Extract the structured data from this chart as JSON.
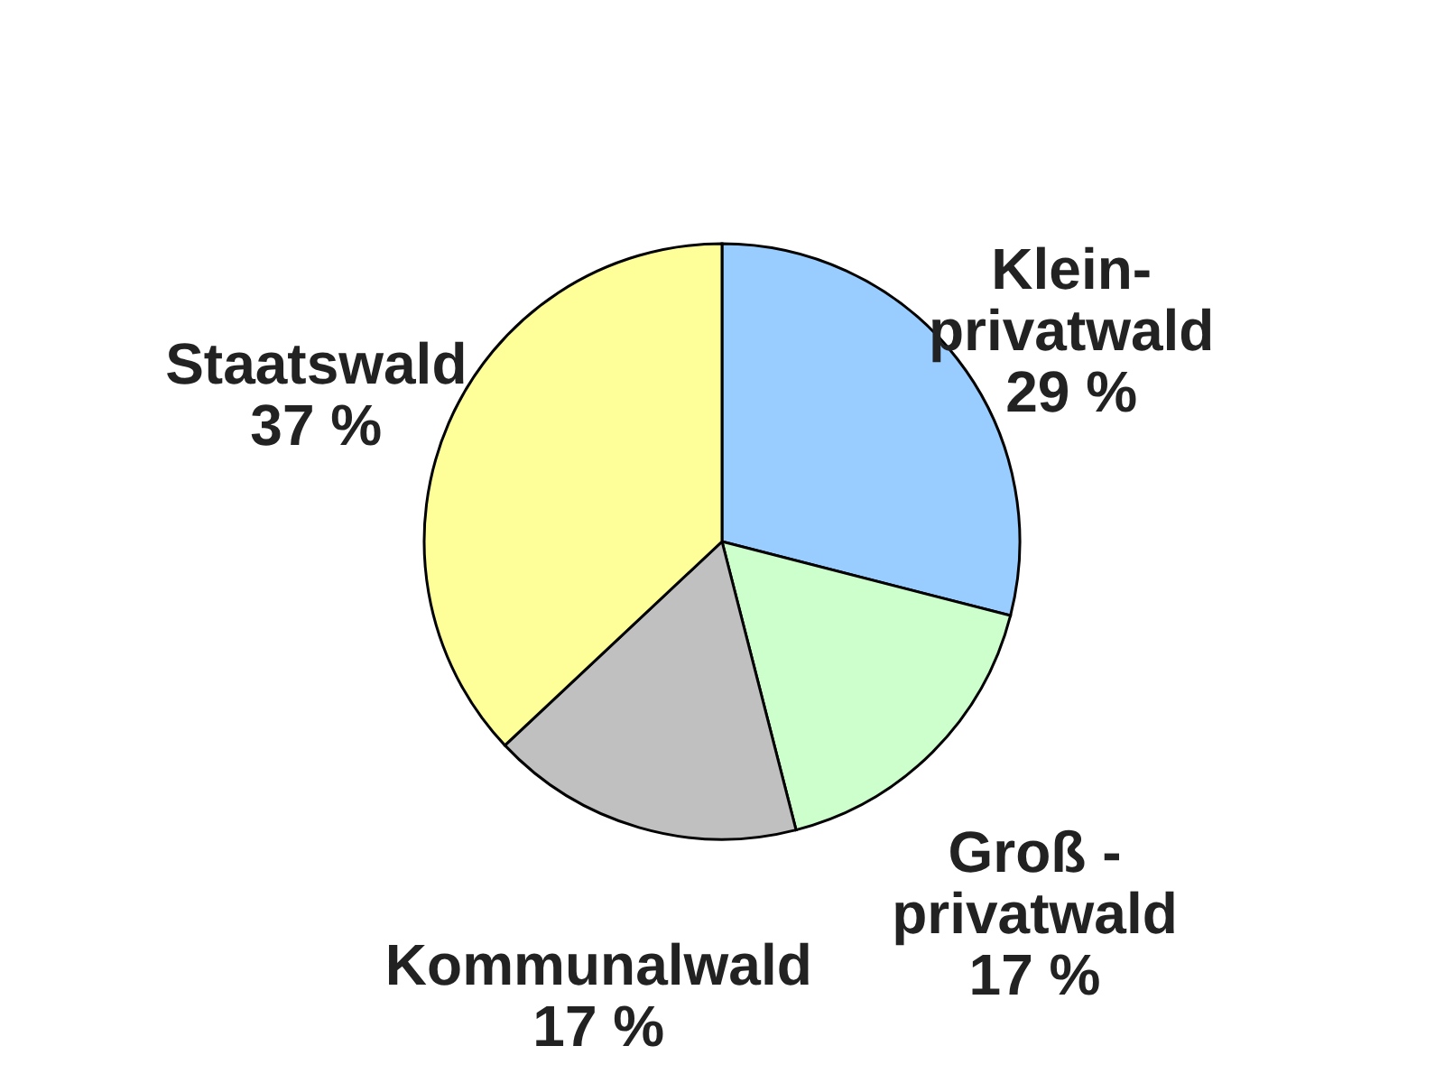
{
  "chart_data": {
    "type": "pie",
    "categories": [
      "Klein-\nprivatwald",
      "Groß -\nprivatwald",
      "Kommunalwald",
      "Staatswald"
    ],
    "values": [
      29,
      17,
      17,
      37
    ],
    "value_labels": [
      "29 %",
      "17 %",
      "17 %",
      "37 %"
    ],
    "colors": [
      "#99ccff",
      "#ccffcc",
      "#c0c0c0",
      "#ffff99"
    ]
  }
}
